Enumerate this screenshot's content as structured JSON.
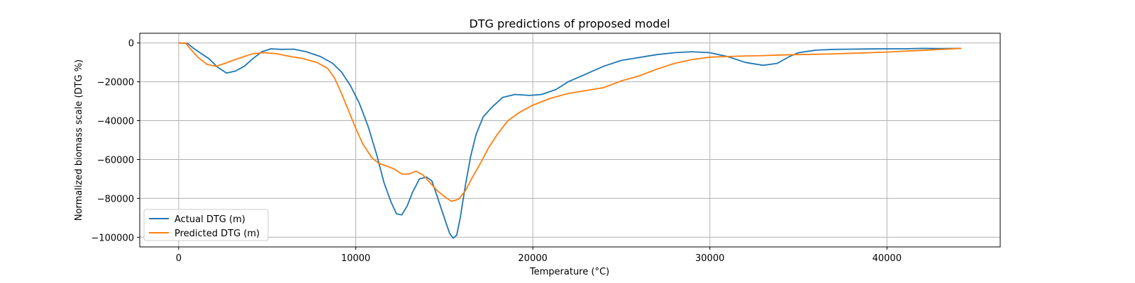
{
  "chart_data": {
    "type": "line",
    "title": "DTG predictions of proposed model",
    "xlabel": "Temperature (°C)",
    "ylabel": "Normalized biomass scale (DTG %)",
    "xlim": [
      -2200,
      46400
    ],
    "ylim": [
      -105000,
      5000
    ],
    "xticks": [
      0,
      10000,
      20000,
      30000,
      40000
    ],
    "xtick_labels": [
      "0",
      "10000",
      "20000",
      "30000",
      "40000"
    ],
    "yticks": [
      0,
      -20000,
      -40000,
      -60000,
      -80000,
      -100000
    ],
    "ytick_labels": [
      "0",
      "−20000",
      "−40000",
      "−60000",
      "−80000",
      "−100000"
    ],
    "grid": true,
    "legend_position": "lower-left",
    "series": [
      {
        "name": "Actual DTG (m)",
        "color": "#1f77b4",
        "points": [
          [
            0,
            0
          ],
          [
            500,
            -200
          ],
          [
            800,
            -2500
          ],
          [
            1200,
            -5000
          ],
          [
            1700,
            -8000
          ],
          [
            2200,
            -12500
          ],
          [
            2700,
            -15500
          ],
          [
            3200,
            -14500
          ],
          [
            3700,
            -12000
          ],
          [
            4200,
            -8000
          ],
          [
            4700,
            -4500
          ],
          [
            5200,
            -3000
          ],
          [
            5800,
            -3300
          ],
          [
            6500,
            -3200
          ],
          [
            7200,
            -4500
          ],
          [
            8000,
            -7000
          ],
          [
            8700,
            -10500
          ],
          [
            9200,
            -15000
          ],
          [
            9700,
            -22000
          ],
          [
            10200,
            -31000
          ],
          [
            10700,
            -43000
          ],
          [
            11200,
            -58000
          ],
          [
            11600,
            -72000
          ],
          [
            12000,
            -82000
          ],
          [
            12300,
            -88000
          ],
          [
            12600,
            -88500
          ],
          [
            12900,
            -84000
          ],
          [
            13200,
            -77000
          ],
          [
            13600,
            -70000
          ],
          [
            14000,
            -69000
          ],
          [
            14300,
            -71000
          ],
          [
            14600,
            -79000
          ],
          [
            15000,
            -90000
          ],
          [
            15300,
            -98000
          ],
          [
            15500,
            -100500
          ],
          [
            15700,
            -99000
          ],
          [
            15900,
            -90000
          ],
          [
            16200,
            -73000
          ],
          [
            16500,
            -58000
          ],
          [
            16800,
            -47000
          ],
          [
            17200,
            -38000
          ],
          [
            17700,
            -33000
          ],
          [
            18300,
            -28000
          ],
          [
            19000,
            -26500
          ],
          [
            19800,
            -27000
          ],
          [
            20500,
            -26500
          ],
          [
            21300,
            -24000
          ],
          [
            22000,
            -20000
          ],
          [
            23000,
            -16000
          ],
          [
            24000,
            -12000
          ],
          [
            25000,
            -9000
          ],
          [
            26000,
            -7500
          ],
          [
            27000,
            -6000
          ],
          [
            28000,
            -5000
          ],
          [
            29000,
            -4500
          ],
          [
            30000,
            -5000
          ],
          [
            31000,
            -7000
          ],
          [
            32000,
            -10000
          ],
          [
            33000,
            -11500
          ],
          [
            33800,
            -10500
          ],
          [
            34500,
            -7000
          ],
          [
            35000,
            -5000
          ],
          [
            36000,
            -3700
          ],
          [
            37000,
            -3300
          ],
          [
            38000,
            -3200
          ],
          [
            39000,
            -3100
          ],
          [
            40000,
            -3000
          ],
          [
            41000,
            -3000
          ],
          [
            42000,
            -2800
          ],
          [
            43000,
            -2900
          ],
          [
            44200,
            -2800
          ]
        ]
      },
      {
        "name": "Predicted DTG (m)",
        "color": "#ff7f0e",
        "points": [
          [
            0,
            0
          ],
          [
            400,
            -100
          ],
          [
            700,
            -3500
          ],
          [
            1100,
            -7500
          ],
          [
            1600,
            -11000
          ],
          [
            2100,
            -12000
          ],
          [
            2600,
            -10500
          ],
          [
            3200,
            -8500
          ],
          [
            3700,
            -7000
          ],
          [
            4200,
            -5500
          ],
          [
            4800,
            -5000
          ],
          [
            5500,
            -5500
          ],
          [
            6200,
            -6800
          ],
          [
            7000,
            -8000
          ],
          [
            7800,
            -10000
          ],
          [
            8400,
            -13000
          ],
          [
            8800,
            -18000
          ],
          [
            9200,
            -26000
          ],
          [
            9600,
            -35000
          ],
          [
            10000,
            -44000
          ],
          [
            10400,
            -52000
          ],
          [
            10900,
            -59000
          ],
          [
            11300,
            -62000
          ],
          [
            11800,
            -63500
          ],
          [
            12200,
            -65000
          ],
          [
            12600,
            -67500
          ],
          [
            13000,
            -67500
          ],
          [
            13400,
            -66000
          ],
          [
            13800,
            -68000
          ],
          [
            14200,
            -72000
          ],
          [
            14600,
            -76000
          ],
          [
            15000,
            -79000
          ],
          [
            15400,
            -81500
          ],
          [
            15800,
            -80500
          ],
          [
            16200,
            -76000
          ],
          [
            16600,
            -69000
          ],
          [
            17100,
            -61000
          ],
          [
            17500,
            -54000
          ],
          [
            18000,
            -47000
          ],
          [
            18600,
            -40000
          ],
          [
            19200,
            -36000
          ],
          [
            20000,
            -32000
          ],
          [
            21000,
            -28500
          ],
          [
            22000,
            -26000
          ],
          [
            23000,
            -24500
          ],
          [
            24000,
            -23000
          ],
          [
            25000,
            -19500
          ],
          [
            26000,
            -17000
          ],
          [
            27000,
            -13500
          ],
          [
            28000,
            -10500
          ],
          [
            29000,
            -8500
          ],
          [
            30000,
            -7300
          ],
          [
            31000,
            -7000
          ],
          [
            32000,
            -6700
          ],
          [
            33000,
            -6500
          ],
          [
            34000,
            -6200
          ],
          [
            35000,
            -6000
          ],
          [
            36000,
            -5800
          ],
          [
            37000,
            -5600
          ],
          [
            38000,
            -5300
          ],
          [
            39000,
            -5000
          ],
          [
            40000,
            -4700
          ],
          [
            41000,
            -4200
          ],
          [
            42000,
            -3800
          ],
          [
            43000,
            -3300
          ],
          [
            44200,
            -2800
          ]
        ]
      }
    ]
  }
}
